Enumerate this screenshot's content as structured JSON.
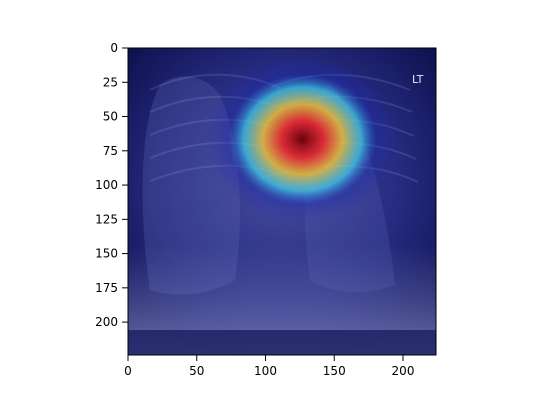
{
  "image": {
    "description_kind": "chest x-ray with heatmap overlay",
    "overlay_marker": "LT"
  },
  "axes": {
    "x_ticks": [
      "0",
      "50",
      "100",
      "150",
      "200"
    ],
    "y_ticks": [
      "0",
      "25",
      "50",
      "75",
      "100",
      "125",
      "150",
      "175",
      "200"
    ],
    "x_range": [
      0,
      224
    ],
    "y_range": [
      0,
      224
    ],
    "y_inverted": true,
    "grid": false
  },
  "colors": {
    "background": "#ffffff",
    "image_base": "#3a3f8a",
    "heat_core": "#8b0000",
    "heat_red": "#ff3b2f",
    "heat_yellow": "#ffd23a",
    "heat_cyan": "#45e6ff",
    "heat_blue": "#1b2bbf",
    "axis_color": "#000000"
  }
}
